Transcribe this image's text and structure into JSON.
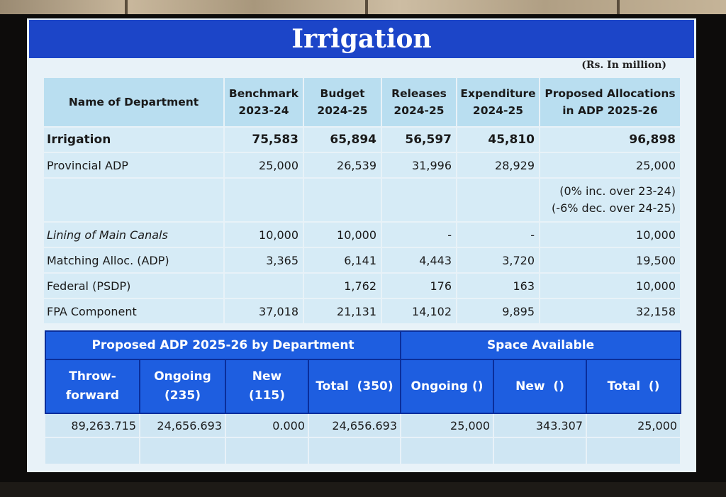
{
  "slide": {
    "title": "Irrigation",
    "unit_note": "(Rs. In million)"
  },
  "allocation_table": {
    "headers": {
      "department": "Name of Department",
      "benchmark": [
        "Benchmark",
        "2023-24"
      ],
      "budget": [
        "Budget",
        "2024-25"
      ],
      "releases": [
        "Releases",
        "2024-25"
      ],
      "expenditure": [
        "Expenditure",
        "2024-25"
      ],
      "proposed": [
        "Proposed Allocations",
        "in ADP 2025-26"
      ]
    },
    "rows": [
      {
        "name": "Irrigation",
        "benchmark": "75,583",
        "budget": "65,894",
        "releases": "56,597",
        "expenditure": "45,810",
        "proposed": "96,898"
      },
      {
        "name": "Provincial ADP",
        "benchmark": "25,000",
        "budget": "26,539",
        "releases": "31,996",
        "expenditure": "28,929",
        "proposed": "25,000"
      },
      {
        "name": "",
        "benchmark": "",
        "budget": "",
        "releases": "",
        "expenditure": "",
        "proposed_notes": [
          "(0% inc. over 23-24)",
          "(-6% dec. over 24-25)"
        ]
      },
      {
        "name": "Lining of Main Canals",
        "benchmark": "10,000",
        "budget": "10,000",
        "releases": "-",
        "expenditure": "-",
        "proposed": "10,000"
      },
      {
        "name": "Matching Alloc. (ADP)",
        "benchmark": "3,365",
        "budget": "6,141",
        "releases": "4,443",
        "expenditure": "3,720",
        "proposed": "19,500"
      },
      {
        "name": "Federal (PSDP)",
        "benchmark": "",
        "budget": "1,762",
        "releases": "176",
        "expenditure": "163",
        "proposed": "10,000"
      },
      {
        "name": "FPA Component",
        "benchmark": "37,018",
        "budget": "21,131",
        "releases": "14,102",
        "expenditure": "9,895",
        "proposed": "32,158"
      }
    ]
  },
  "adp_table": {
    "group_headers": {
      "left": "Proposed ADP 2025-26 by Department",
      "right": "Space Available"
    },
    "columns": {
      "throw_forward": [
        "Throw-",
        "forward"
      ],
      "ongoing": [
        "Ongoing",
        "(235)"
      ],
      "new": [
        "New",
        "(115)"
      ],
      "total": "Total  (350)",
      "space_ongoing": "Ongoing ()",
      "space_new": "New  ()",
      "space_total": "Total  ()"
    },
    "values": {
      "throw_forward": "89,263.715",
      "ongoing": "24,656.693",
      "new": "0.000",
      "total": "24,656.693",
      "space_ongoing": "25,000",
      "space_new": "343.307",
      "space_total": "25,000"
    }
  },
  "colors": {
    "title_bar": "#1c45c8",
    "header_blue": "#1e5ee0",
    "light_header": "#b9def0",
    "cell_bg": "#d6ebf6"
  }
}
